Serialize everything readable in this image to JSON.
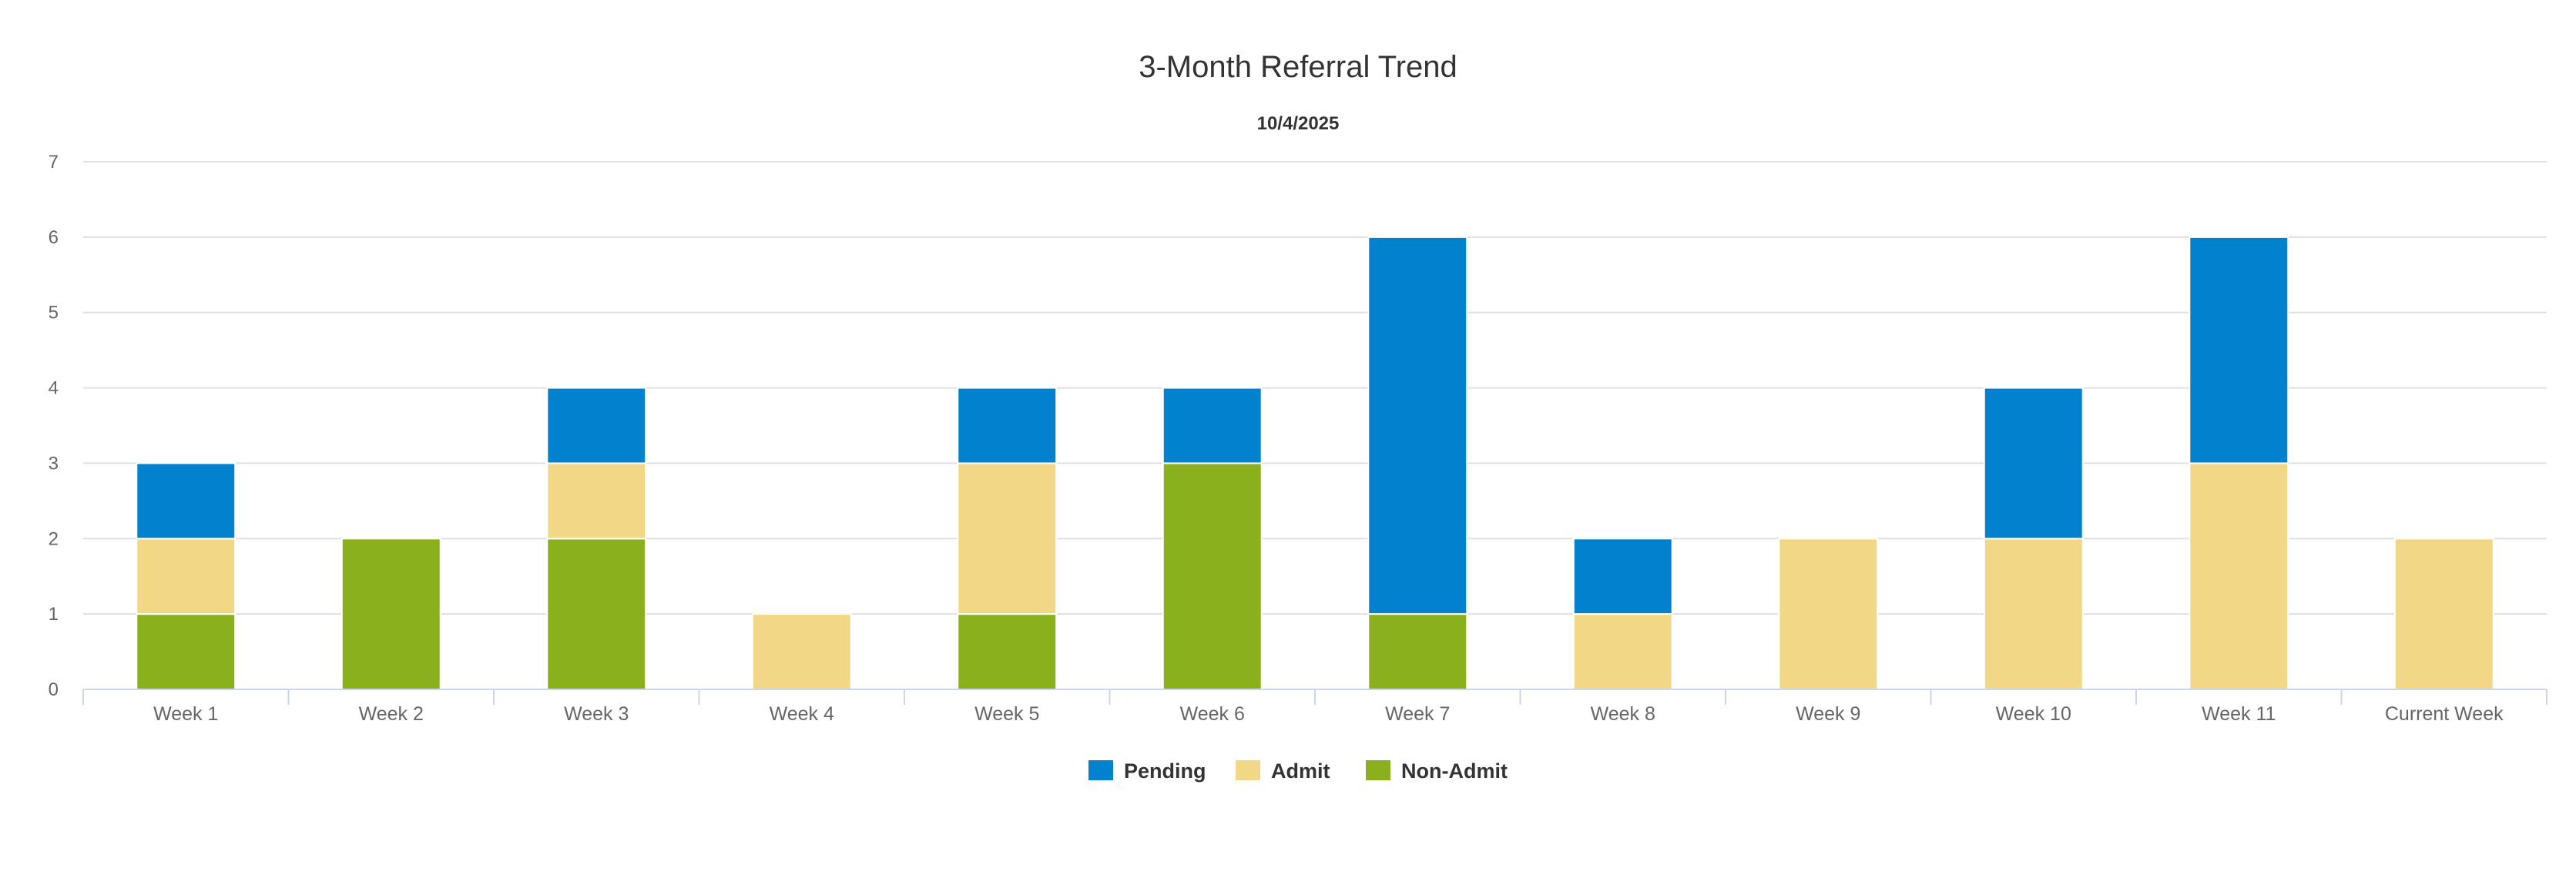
{
  "chart_data": {
    "type": "bar",
    "stacked": true,
    "title": "3-Month Referral Trend",
    "subtitle": "10/4/2025",
    "xlabel": "",
    "ylabel": "",
    "ylim": [
      0,
      7
    ],
    "yticks": [
      0,
      1,
      2,
      3,
      4,
      5,
      6,
      7
    ],
    "grid": true,
    "legend_position": "bottom-center",
    "categories": [
      "Week 1",
      "Week 2",
      "Week 3",
      "Week 4",
      "Week 5",
      "Week 6",
      "Week 7",
      "Week 8",
      "Week 9",
      "Week 10",
      "Week 11",
      "Current Week"
    ],
    "series": [
      {
        "name": "Pending",
        "color": "#0281ce",
        "values": [
          1,
          0,
          1,
          0,
          1,
          1,
          5,
          1,
          0,
          2,
          3,
          0
        ]
      },
      {
        "name": "Admit",
        "color": "#f2d886",
        "values": [
          1,
          0,
          1,
          1,
          2,
          0,
          0,
          1,
          2,
          2,
          3,
          2
        ]
      },
      {
        "name": "Non-Admit",
        "color": "#8ab01b",
        "values": [
          1,
          2,
          2,
          0,
          1,
          3,
          1,
          0,
          0,
          0,
          0,
          0
        ]
      }
    ]
  }
}
